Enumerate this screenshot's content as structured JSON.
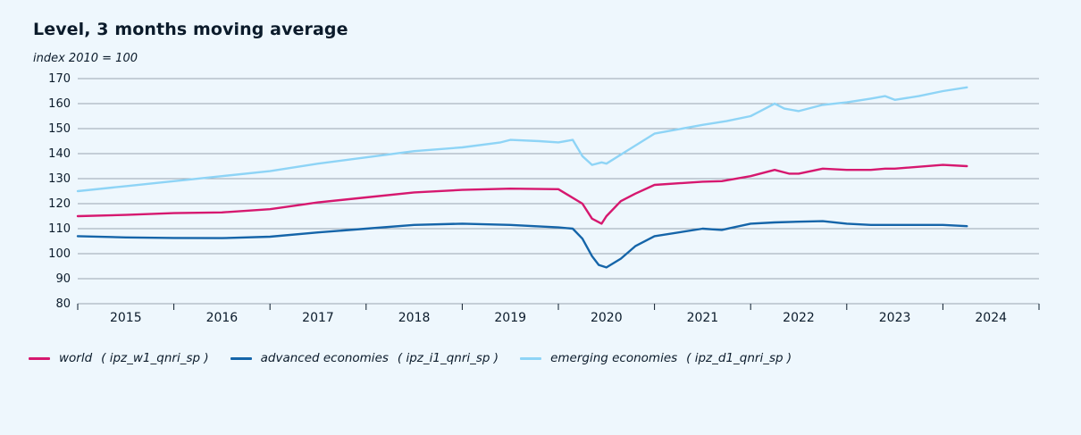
{
  "chart_data": {
    "type": "line",
    "title": "Level, 3 months moving average",
    "ylabel": "index 2010 = 100",
    "xlabel": "",
    "ylim": [
      80,
      170
    ],
    "yticks": [
      80,
      90,
      100,
      110,
      120,
      130,
      140,
      150,
      160,
      170
    ],
    "xlim": [
      2014.5,
      2024.5
    ],
    "xticks": [
      "2015",
      "2016",
      "2017",
      "2018",
      "2019",
      "2020",
      "2021",
      "2022",
      "2023",
      "2024"
    ],
    "grid": true,
    "legend_position": "bottom",
    "series": [
      {
        "name": "world ( ipz_w1_qnri_sp )",
        "color": "#d6186f",
        "x": [
          2014.5,
          2015.0,
          2015.5,
          2016.0,
          2016.5,
          2017.0,
          2017.5,
          2018.0,
          2018.5,
          2019.0,
          2019.5,
          2019.75,
          2019.85,
          2019.95,
          2020.0,
          2020.15,
          2020.3,
          2020.5,
          2021.0,
          2021.2,
          2021.5,
          2021.75,
          2021.9,
          2022.0,
          2022.25,
          2022.5,
          2022.75,
          2022.9,
          2023.0,
          2023.5,
          2023.75
        ],
        "y": [
          115,
          115.5,
          116.2,
          116.5,
          117.8,
          120.5,
          122.5,
          124.5,
          125.5,
          126,
          125.8,
          120,
          114,
          112,
          115,
          121,
          124,
          127.5,
          128.8,
          129,
          131,
          133.5,
          132,
          132,
          134,
          133.5,
          133.5,
          134,
          134,
          135.5,
          135
        ]
      },
      {
        "name": "advanced economies ( ipz_i1_qnri_sp )",
        "color": "#1565a9",
        "x": [
          2014.5,
          2015.0,
          2015.5,
          2016.0,
          2016.5,
          2017.0,
          2017.5,
          2018.0,
          2018.5,
          2019.0,
          2019.5,
          2019.65,
          2019.75,
          2019.85,
          2019.92,
          2020.0,
          2020.15,
          2020.3,
          2020.5,
          2021.0,
          2021.2,
          2021.5,
          2021.75,
          2022.0,
          2022.25,
          2022.5,
          2022.75,
          2023.0,
          2023.5,
          2023.75
        ],
        "y": [
          107,
          106.5,
          106.3,
          106.2,
          106.8,
          108.5,
          110,
          111.5,
          112,
          111.5,
          110.5,
          110,
          106,
          99,
          95.5,
          94.5,
          98,
          103,
          107,
          110,
          109.5,
          112,
          112.5,
          112.8,
          113,
          112,
          111.5,
          111.5,
          111.5,
          111
        ]
      },
      {
        "name": "emerging economies ( ipz_d1_qnri_sp )",
        "color": "#8ed4f6",
        "x": [
          2014.5,
          2015.0,
          2015.5,
          2016.0,
          2016.5,
          2017.0,
          2017.5,
          2018.0,
          2018.5,
          2018.9,
          2019.0,
          2019.3,
          2019.5,
          2019.65,
          2019.75,
          2019.85,
          2019.95,
          2020.0,
          2020.25,
          2020.5,
          2021.0,
          2021.25,
          2021.5,
          2021.6,
          2021.75,
          2021.85,
          2022.0,
          2022.25,
          2022.5,
          2022.75,
          2022.9,
          2023.0,
          2023.25,
          2023.5,
          2023.75
        ],
        "y": [
          125,
          127,
          129,
          131,
          133,
          136,
          138.5,
          141,
          142.5,
          144.5,
          145.5,
          145,
          144.5,
          145.5,
          139,
          135.5,
          136.5,
          136,
          142,
          148,
          151.5,
          153,
          155,
          157,
          160,
          158,
          157,
          159.5,
          160.5,
          162,
          163,
          161.5,
          163,
          165,
          166.5
        ]
      }
    ]
  },
  "legend": [
    {
      "label": "world",
      "code": "( ipz_w1_qnri_sp )"
    },
    {
      "label": "advanced economies",
      "code": "( ipz_i1_qnri_sp )"
    },
    {
      "label": "emerging economies",
      "code": "( ipz_d1_qnri_sp )"
    }
  ]
}
